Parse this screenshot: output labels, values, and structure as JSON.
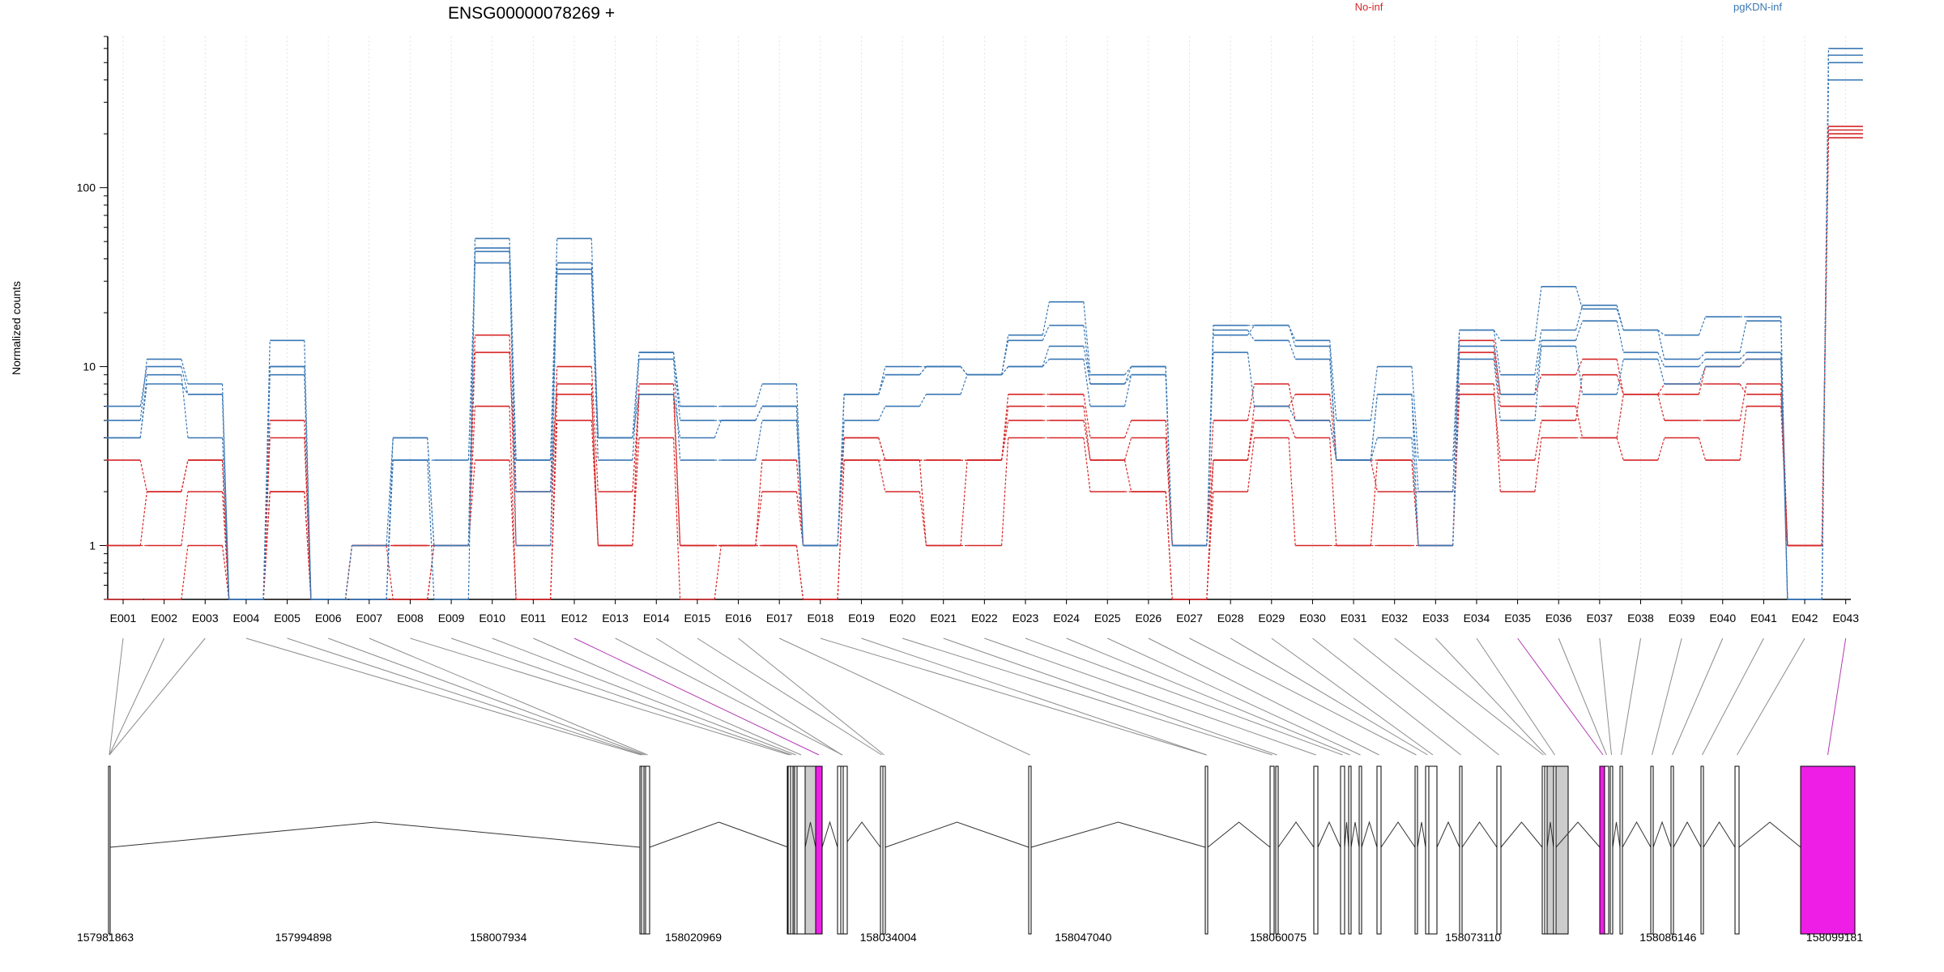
{
  "chart_data": {
    "type": "line",
    "title": "ENSG00000078269 +",
    "ylabel": "Normalized counts",
    "xlabel": "",
    "yscale": "log",
    "ylim": [
      0.5,
      700
    ],
    "yticks": [
      "1",
      "10",
      "100"
    ],
    "categories": [
      "E001",
      "E002",
      "E003",
      "E004",
      "E005",
      "E006",
      "E007",
      "E008",
      "E009",
      "E010",
      "E011",
      "E012",
      "E013",
      "E014",
      "E015",
      "E016",
      "E017",
      "E018",
      "E019",
      "E020",
      "E021",
      "E022",
      "E023",
      "E024",
      "E025",
      "E026",
      "E027",
      "E028",
      "E029",
      "E030",
      "E031",
      "E032",
      "E033",
      "E034",
      "E035",
      "E036",
      "E037",
      "E038",
      "E039",
      "E040",
      "E041",
      "E042",
      "E043"
    ],
    "legend": [
      {
        "name": "No-inf",
        "color": "#d62728"
      },
      {
        "name": "pgKDN-inf",
        "color": "#3a78b5"
      }
    ],
    "series": [
      {
        "name": "No-inf",
        "color": "#d62728",
        "values": [
          0.5,
          0.5,
          1,
          0.5,
          2,
          0.5,
          0.5,
          0.5,
          1,
          3,
          0.5,
          5,
          1,
          4,
          0.5,
          1,
          1,
          0.5,
          3,
          2,
          1,
          1,
          4,
          4,
          2,
          2,
          0.5,
          2,
          4,
          1,
          1,
          1,
          1,
          8,
          2,
          4,
          4,
          3,
          4,
          3,
          6,
          1,
          190
        ]
      },
      {
        "name": "No-inf",
        "color": "#d62728",
        "values": [
          1,
          1,
          2,
          0.5,
          2,
          0.5,
          1,
          1,
          1,
          6,
          0.5,
          7,
          1,
          7,
          1,
          1,
          1,
          0.5,
          3,
          3,
          1,
          3,
          5,
          5,
          3,
          2,
          0.5,
          3,
          5,
          4,
          1,
          3,
          1,
          7,
          3,
          5,
          9,
          7,
          7,
          10,
          11,
          1,
          200
        ]
      },
      {
        "name": "No-inf",
        "color": "#d62728",
        "values": [
          3,
          2,
          3,
          0.5,
          4,
          0.5,
          1,
          1,
          1,
          12,
          2,
          8,
          1,
          8,
          1,
          1,
          2,
          1,
          4,
          3,
          3,
          3,
          6,
          6,
          3,
          4,
          1,
          3,
          6,
          7,
          3,
          3,
          1,
          12,
          6,
          6,
          4,
          7,
          5,
          5,
          8,
          1,
          210
        ]
      },
      {
        "name": "No-inf",
        "color": "#d62728",
        "values": [
          1,
          2,
          3,
          0.5,
          5,
          0.5,
          1,
          0.5,
          1,
          15,
          1,
          10,
          2,
          7,
          1,
          1,
          3,
          1,
          4,
          3,
          3,
          3,
          7,
          7,
          4,
          5,
          1,
          5,
          8,
          5,
          3,
          2,
          2,
          14,
          7,
          9,
          11,
          7,
          8,
          8,
          7,
          1,
          220
        ]
      },
      {
        "name": "pgKDN-inf",
        "color": "#3a78b5",
        "values": [
          4,
          8,
          7,
          0.5,
          9,
          0.5,
          0.5,
          3,
          3,
          38,
          3,
          33,
          3,
          11,
          3,
          3,
          5,
          1,
          5,
          6,
          7,
          9,
          10,
          11,
          6,
          9,
          1,
          12,
          6,
          5,
          3,
          4,
          1,
          11,
          5,
          13,
          7,
          11,
          8,
          10,
          11,
          0.5,
          400
        ]
      },
      {
        "name": "pgKDN-inf",
        "color": "#3a78b5",
        "values": [
          4,
          9,
          4,
          0.5,
          10,
          0.5,
          0.5,
          3,
          0.5,
          44,
          2,
          35,
          4,
          7,
          4,
          5,
          6,
          1,
          7,
          9,
          10,
          9,
          10,
          13,
          8,
          9,
          1,
          16,
          14,
          11,
          3,
          7,
          2,
          13,
          7,
          14,
          18,
          12,
          10,
          11,
          12,
          0.5,
          500
        ]
      },
      {
        "name": "pgKDN-inf",
        "color": "#3a78b5",
        "values": [
          6,
          10,
          7,
          0.5,
          10,
          0.5,
          0.5,
          4,
          1,
          46,
          1,
          38,
          4,
          12,
          5,
          5,
          6,
          1,
          7,
          9,
          10,
          9,
          14,
          17,
          8,
          10,
          1,
          15,
          17,
          13,
          3,
          7,
          1,
          16,
          9,
          16,
          22,
          16,
          11,
          12,
          18,
          0.5,
          550
        ]
      },
      {
        "name": "pgKDN-inf",
        "color": "#3a78b5",
        "values": [
          5,
          11,
          8,
          0.5,
          14,
          0.5,
          1,
          4,
          1,
          52,
          3,
          52,
          4,
          12,
          6,
          6,
          8,
          1,
          7,
          10,
          10,
          9,
          15,
          23,
          9,
          10,
          1,
          17,
          17,
          14,
          5,
          10,
          3,
          16,
          14,
          28,
          21,
          16,
          15,
          19,
          19,
          0.5,
          600
        ]
      }
    ],
    "genome_axis": {
      "tick_labels": [
        "157981863",
        "157994898",
        "158007934",
        "158020969",
        "158034004",
        "158047040",
        "158060075",
        "158073110",
        "158086146",
        "158099181"
      ]
    },
    "exon_colors": {
      "default": "#ffffff",
      "shaded": "#cccccc",
      "highlight": "#ee1ee6"
    },
    "exon_types": [
      "default",
      "default",
      "default",
      "default",
      "default",
      "default",
      "default",
      "default",
      "default",
      "default",
      "default",
      "highlight",
      "default",
      "default",
      "default",
      "default",
      "default",
      "default",
      "default",
      "default",
      "default",
      "default",
      "default",
      "default",
      "default",
      "default",
      "default",
      "default",
      "default",
      "default",
      "default",
      "default",
      "default",
      "default",
      "highlight",
      "default",
      "default",
      "default",
      "default",
      "default",
      "default",
      "default",
      "highlight"
    ]
  }
}
